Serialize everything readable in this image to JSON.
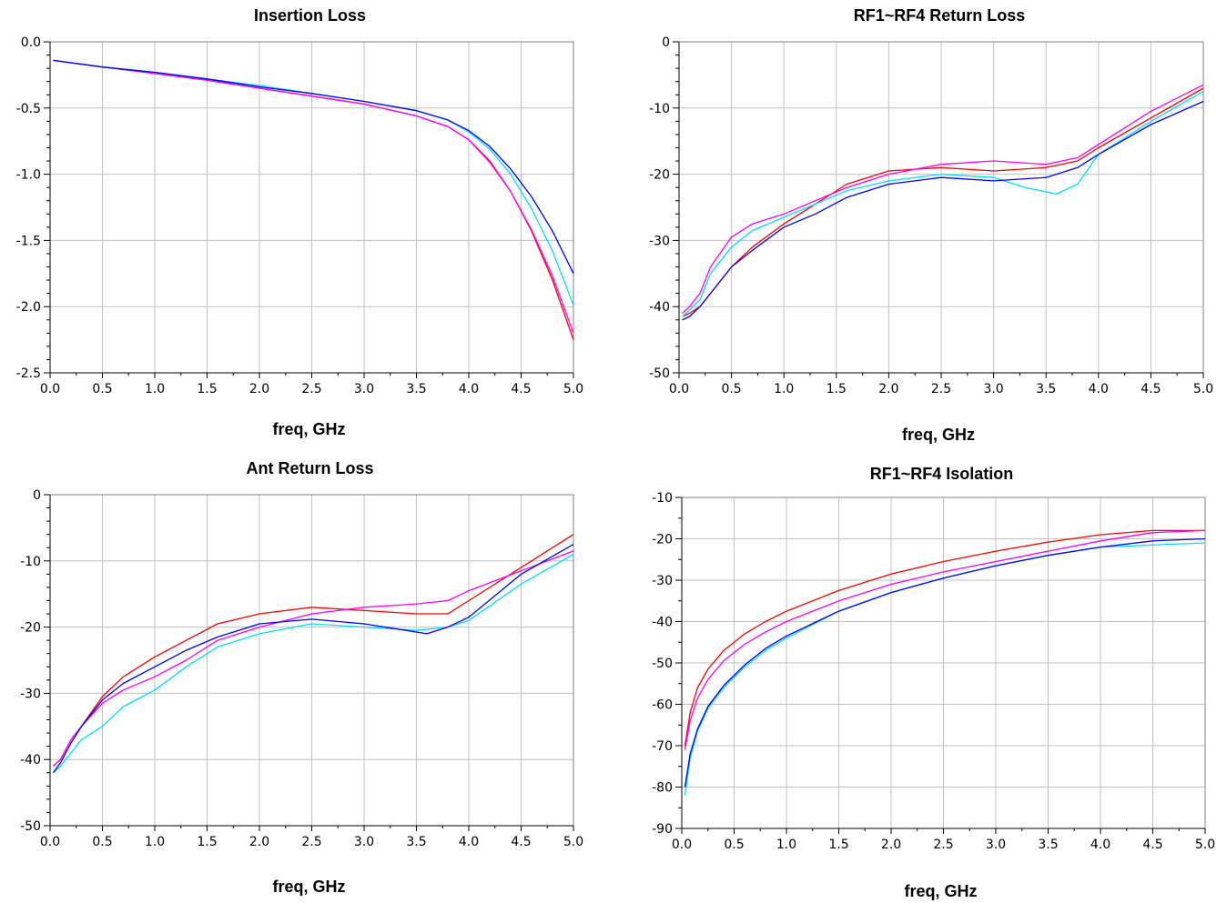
{
  "colors": {
    "red": "#ff0000",
    "magenta": "#ff00ff",
    "blue": "#0000ff",
    "cyan": "#00e0ff",
    "grid": "#c0c0c0"
  },
  "chart_data": [
    {
      "type": "line",
      "title": "Insertion Loss",
      "xlabel": "freq, GHz",
      "ylabel": "",
      "xlim": [
        0.0,
        5.0
      ],
      "ylim": [
        -2.5,
        0.0
      ],
      "xticks": [
        "0.0",
        "0.5",
        "1.0",
        "1.5",
        "2.0",
        "2.5",
        "3.0",
        "3.5",
        "4.0",
        "4.5",
        "5.0"
      ],
      "yticks": [
        "0.0",
        "-0.5",
        "-1.0",
        "-1.5",
        "-2.0",
        "-2.5"
      ],
      "grid": true,
      "series": [
        {
          "color": "#ff0000",
          "x": [
            0.03,
            0.5,
            1.0,
            1.5,
            2.0,
            2.5,
            3.0,
            3.5,
            3.8,
            4.0,
            4.2,
            4.4,
            4.6,
            4.8,
            5.0
          ],
          "y": [
            -0.14,
            -0.19,
            -0.24,
            -0.29,
            -0.35,
            -0.41,
            -0.47,
            -0.56,
            -0.64,
            -0.74,
            -0.9,
            -1.13,
            -1.43,
            -1.8,
            -2.25
          ]
        },
        {
          "color": "#ff00ff",
          "x": [
            0.03,
            0.5,
            1.0,
            1.5,
            2.0,
            2.5,
            3.0,
            3.5,
            3.8,
            4.0,
            4.2,
            4.4,
            4.6,
            4.8,
            5.0
          ],
          "y": [
            -0.14,
            -0.19,
            -0.24,
            -0.29,
            -0.35,
            -0.41,
            -0.47,
            -0.56,
            -0.64,
            -0.74,
            -0.91,
            -1.13,
            -1.42,
            -1.77,
            -2.2
          ]
        },
        {
          "color": "#00e0ff",
          "x": [
            0.03,
            0.5,
            1.0,
            1.5,
            2.0,
            2.5,
            3.0,
            3.5,
            3.8,
            4.0,
            4.2,
            4.4,
            4.6,
            4.8,
            5.0
          ],
          "y": [
            -0.14,
            -0.19,
            -0.23,
            -0.28,
            -0.33,
            -0.39,
            -0.45,
            -0.52,
            -0.59,
            -0.68,
            -0.81,
            -1.0,
            -1.26,
            -1.58,
            -1.99
          ]
        },
        {
          "color": "#0000ff",
          "x": [
            0.03,
            0.5,
            1.0,
            1.5,
            2.0,
            2.5,
            3.0,
            3.5,
            3.8,
            4.0,
            4.2,
            4.4,
            4.6,
            4.8,
            5.0
          ],
          "y": [
            -0.14,
            -0.19,
            -0.23,
            -0.28,
            -0.34,
            -0.39,
            -0.45,
            -0.52,
            -0.59,
            -0.67,
            -0.79,
            -0.96,
            -1.17,
            -1.43,
            -1.75
          ]
        }
      ]
    },
    {
      "type": "line",
      "title": "RF1~RF4 Return Loss",
      "xlabel": "freq, GHz",
      "ylabel": "",
      "xlim": [
        0.0,
        5.0
      ],
      "ylim": [
        -50,
        0
      ],
      "xticks": [
        "0.0",
        "0.5",
        "1.0",
        "1.5",
        "2.0",
        "2.5",
        "3.0",
        "3.5",
        "4.0",
        "4.5",
        "5.0"
      ],
      "yticks": [
        "0",
        "-10",
        "-20",
        "-30",
        "-40",
        "-50"
      ],
      "grid": true,
      "series": [
        {
          "color": "#ff0000",
          "x": [
            0.03,
            0.1,
            0.2,
            0.3,
            0.5,
            0.7,
            1.0,
            1.3,
            1.6,
            2.0,
            2.5,
            3.0,
            3.5,
            3.8,
            4.0,
            4.5,
            5.0
          ],
          "y": [
            -41.5,
            -41,
            -40,
            -38,
            -34,
            -31,
            -27.5,
            -24.5,
            -21.5,
            -19.5,
            -19,
            -19.5,
            -19,
            -18,
            -16,
            -11.5,
            -7
          ]
        },
        {
          "color": "#ff00ff",
          "x": [
            0.03,
            0.1,
            0.2,
            0.3,
            0.5,
            0.7,
            1.0,
            1.3,
            1.6,
            2.0,
            2.5,
            3.0,
            3.5,
            3.8,
            4.0,
            4.5,
            5.0
          ],
          "y": [
            -41,
            -40,
            -38,
            -34,
            -29.5,
            -27.5,
            -26,
            -24,
            -22,
            -20,
            -18.5,
            -18,
            -18.5,
            -17.5,
            -15.5,
            -10.5,
            -6.5
          ]
        },
        {
          "color": "#00e0ff",
          "x": [
            0.03,
            0.1,
            0.2,
            0.3,
            0.5,
            0.7,
            1.0,
            1.3,
            1.6,
            2.0,
            2.5,
            3.0,
            3.3,
            3.6,
            3.8,
            4.0,
            4.5,
            5.0
          ],
          "y": [
            -41.5,
            -40.5,
            -39,
            -35,
            -31,
            -28.5,
            -26.5,
            -24.5,
            -22.5,
            -21,
            -20,
            -20.5,
            -22,
            -23,
            -21.5,
            -17,
            -12,
            -7.5
          ]
        },
        {
          "color": "#0000ff",
          "x": [
            0.03,
            0.1,
            0.2,
            0.3,
            0.5,
            0.7,
            1.0,
            1.3,
            1.6,
            2.0,
            2.5,
            3.0,
            3.5,
            3.8,
            4.0,
            4.5,
            5.0
          ],
          "y": [
            -42,
            -41.5,
            -40,
            -38,
            -34,
            -31.5,
            -28,
            -26,
            -23.5,
            -21.5,
            -20.5,
            -21,
            -20.5,
            -19,
            -17,
            -12.5,
            -9
          ]
        }
      ]
    },
    {
      "type": "line",
      "title": "Ant Return Loss",
      "xlabel": "freq, GHz",
      "ylabel": "",
      "xlim": [
        0.0,
        5.0
      ],
      "ylim": [
        -50,
        0
      ],
      "xticks": [
        "0.0",
        "0.5",
        "1.0",
        "1.5",
        "2.0",
        "2.5",
        "3.0",
        "3.5",
        "4.0",
        "4.5",
        "5.0"
      ],
      "yticks": [
        "0",
        "-10",
        "-20",
        "-30",
        "-40",
        "-50"
      ],
      "grid": true,
      "series": [
        {
          "color": "#ff0000",
          "x": [
            0.03,
            0.1,
            0.2,
            0.3,
            0.5,
            0.7,
            1.0,
            1.3,
            1.6,
            2.0,
            2.5,
            3.0,
            3.5,
            3.8,
            4.0,
            4.5,
            5.0
          ],
          "y": [
            -41,
            -40,
            -37,
            -35,
            -30.5,
            -27.5,
            -24.5,
            -22,
            -19.5,
            -18,
            -17,
            -17.5,
            -18,
            -18,
            -16,
            -11,
            -6
          ]
        },
        {
          "color": "#ff00ff",
          "x": [
            0.03,
            0.1,
            0.2,
            0.3,
            0.5,
            0.7,
            1.0,
            1.3,
            1.6,
            2.0,
            2.5,
            3.0,
            3.5,
            3.8,
            4.0,
            4.5,
            5.0
          ],
          "y": [
            -41,
            -40,
            -37,
            -35,
            -31.5,
            -29.5,
            -27.5,
            -25,
            -22,
            -20,
            -18,
            -17,
            -16.5,
            -16,
            -14.5,
            -11.5,
            -8.5
          ]
        },
        {
          "color": "#00e0ff",
          "x": [
            0.03,
            0.1,
            0.2,
            0.3,
            0.5,
            0.7,
            1.0,
            1.3,
            1.6,
            2.0,
            2.5,
            3.0,
            3.5,
            3.8,
            4.0,
            4.5,
            5.0
          ],
          "y": [
            -42,
            -41,
            -39,
            -37,
            -35,
            -32,
            -29.5,
            -26,
            -23,
            -21,
            -19.5,
            -20,
            -20.5,
            -20,
            -19,
            -13.5,
            -9
          ]
        },
        {
          "color": "#0000ff",
          "x": [
            0.03,
            0.1,
            0.2,
            0.3,
            0.5,
            0.7,
            1.0,
            1.3,
            1.6,
            2.0,
            2.5,
            3.0,
            3.4,
            3.6,
            3.8,
            4.0,
            4.5,
            5.0
          ],
          "y": [
            -42,
            -40.5,
            -37.5,
            -35,
            -31,
            -28.5,
            -26,
            -23.5,
            -21.5,
            -19.5,
            -18.8,
            -19.5,
            -20.5,
            -21,
            -20,
            -18.5,
            -12,
            -7.5
          ]
        }
      ]
    },
    {
      "type": "line",
      "title": "RF1~RF4 Isolation",
      "xlabel": "freq, GHz",
      "ylabel": "",
      "xlim": [
        0.0,
        5.0
      ],
      "ylim": [
        -90,
        -10
      ],
      "xticks": [
        "0.0",
        "0.5",
        "1.0",
        "1.5",
        "2.0",
        "2.5",
        "3.0",
        "3.5",
        "4.0",
        "4.5",
        "5.0"
      ],
      "yticks": [
        "-10",
        "-20",
        "-30",
        "-40",
        "-50",
        "-60",
        "-70",
        "-80",
        "-90"
      ],
      "grid": true,
      "series": [
        {
          "color": "#ff0000",
          "x": [
            0.03,
            0.08,
            0.15,
            0.25,
            0.4,
            0.6,
            0.8,
            1.0,
            1.5,
            2.0,
            2.5,
            3.0,
            3.5,
            4.0,
            4.5,
            5.0
          ],
          "y": [
            -70,
            -62,
            -56,
            -51.5,
            -47,
            -43,
            -40,
            -37.5,
            -32.5,
            -28.5,
            -25.5,
            -23,
            -20.8,
            -19,
            -18,
            -18
          ]
        },
        {
          "color": "#ff00ff",
          "x": [
            0.03,
            0.08,
            0.15,
            0.25,
            0.4,
            0.6,
            0.8,
            1.0,
            1.5,
            2.0,
            2.5,
            3.0,
            3.5,
            4.0,
            4.5,
            5.0
          ],
          "y": [
            -71,
            -64,
            -58.5,
            -54,
            -49.5,
            -45.5,
            -42.5,
            -40,
            -35,
            -31,
            -28,
            -25.5,
            -23,
            -20.5,
            -18.5,
            -18
          ]
        },
        {
          "color": "#00e0ff",
          "x": [
            0.03,
            0.08,
            0.15,
            0.25,
            0.4,
            0.6,
            0.8,
            1.0,
            1.5,
            2.0,
            2.5,
            3.0,
            3.5,
            4.0,
            4.5,
            5.0
          ],
          "y": [
            -82,
            -73,
            -66.5,
            -61,
            -56,
            -51,
            -47,
            -44,
            -37.5,
            -33,
            -29.5,
            -26.5,
            -24,
            -22,
            -21.5,
            -21
          ]
        },
        {
          "color": "#0000ff",
          "x": [
            0.03,
            0.08,
            0.15,
            0.25,
            0.4,
            0.6,
            0.8,
            1.0,
            1.5,
            2.0,
            2.5,
            3.0,
            3.5,
            4.0,
            4.5,
            5.0
          ],
          "y": [
            -80,
            -72,
            -66,
            -60.5,
            -55.5,
            -50.5,
            -46.5,
            -43.5,
            -37.5,
            -33,
            -29.5,
            -26.5,
            -24,
            -22,
            -20.5,
            -20
          ]
        }
      ]
    }
  ]
}
